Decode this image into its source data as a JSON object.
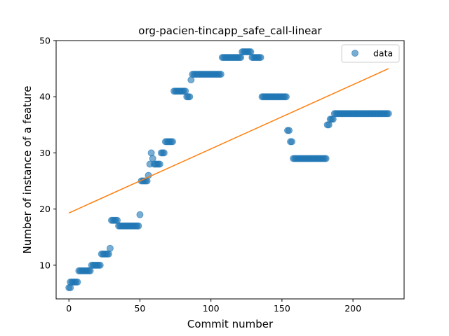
{
  "chart_data": {
    "type": "scatter",
    "title": "org-pacien-tincapp_safe_call-linear",
    "xlabel": "Commit number",
    "ylabel": "Number of instance of a feature",
    "xlim": [
      -9,
      236
    ],
    "ylim": [
      4,
      50
    ],
    "xticks": [
      0,
      50,
      100,
      150,
      200
    ],
    "yticks": [
      10,
      20,
      30,
      40,
      50
    ],
    "grid": false,
    "legend_position": "top-right",
    "colors": {
      "data": "#1f77b4",
      "fit": "#ff7f0e"
    },
    "series": [
      {
        "name": "data",
        "kind": "scatter",
        "runs": [
          [
            0,
            1,
            6
          ],
          [
            1,
            6,
            7
          ],
          [
            7,
            15,
            9
          ],
          [
            16,
            22,
            10
          ],
          [
            23,
            28,
            12
          ],
          [
            29,
            29,
            13
          ],
          [
            30,
            34,
            18
          ],
          [
            35,
            49,
            17
          ],
          [
            50,
            50,
            19
          ],
          [
            51,
            55,
            25
          ],
          [
            56,
            56,
            26
          ],
          [
            57,
            57,
            28
          ],
          [
            58,
            58,
            30
          ],
          [
            59,
            59,
            29
          ],
          [
            60,
            64,
            28
          ],
          [
            65,
            67,
            30
          ],
          [
            68,
            73,
            32
          ],
          [
            74,
            82,
            41
          ],
          [
            83,
            85,
            40
          ],
          [
            86,
            86,
            43
          ],
          [
            87,
            107,
            44
          ],
          [
            108,
            121,
            47
          ],
          [
            122,
            128,
            48
          ],
          [
            129,
            135,
            47
          ],
          [
            136,
            153,
            40
          ],
          [
            154,
            155,
            34
          ],
          [
            156,
            157,
            32
          ],
          [
            158,
            181,
            29
          ],
          [
            182,
            183,
            35
          ],
          [
            184,
            186,
            36
          ],
          [
            187,
            225,
            37
          ]
        ]
      },
      {
        "kind": "line",
        "x": [
          0,
          225
        ],
        "y": [
          19.3,
          45
        ]
      }
    ]
  }
}
